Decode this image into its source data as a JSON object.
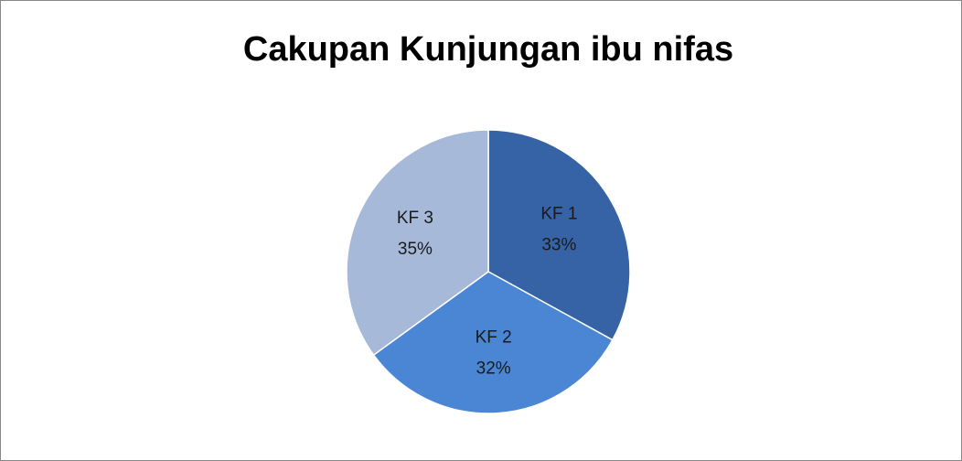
{
  "chart_data": {
    "type": "pie",
    "title": "Cakupan Kunjungan ibu nifas",
    "categories": [
      "KF 1",
      "KF 2",
      "KF 3"
    ],
    "values": [
      33,
      32,
      35
    ],
    "value_labels": [
      "33%",
      "32%",
      "35%"
    ],
    "colors": [
      "#3563a6",
      "#4a86d4",
      "#a7b9d9"
    ]
  }
}
